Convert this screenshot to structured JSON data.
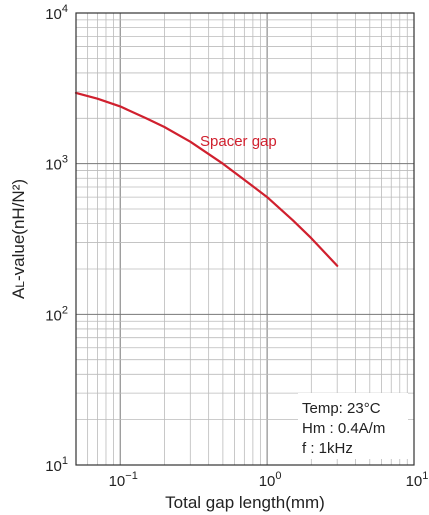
{
  "chart_data": {
    "type": "line",
    "x_scale": "log",
    "y_scale": "log",
    "xlim": [
      0.05,
      10
    ],
    "ylim": [
      10,
      10000
    ],
    "grid": true,
    "xlabel": "Total gap length(mm)",
    "ylabel": {
      "main": "A",
      "sub": "L",
      "rest": "-value(nH/N²)"
    },
    "x_ticks": [
      {
        "value": 0.1,
        "base": "10",
        "exp": "−1"
      },
      {
        "value": 1,
        "base": "10",
        "exp": "0"
      },
      {
        "value": 10,
        "base": "10",
        "exp": "1"
      }
    ],
    "y_ticks": [
      {
        "value": 10,
        "base": "10",
        "exp": "1"
      },
      {
        "value": 100,
        "base": "10",
        "exp": "2"
      },
      {
        "value": 1000,
        "base": "10",
        "exp": "3"
      },
      {
        "value": 10000,
        "base": "10",
        "exp": "4"
      }
    ],
    "series": [
      {
        "name": "Spacer gap",
        "color": "#d0202e",
        "x": [
          0.05,
          0.07,
          0.1,
          0.15,
          0.2,
          0.3,
          0.5,
          0.7,
          1.0,
          1.5,
          2.0,
          3.0
        ],
        "y": [
          2950,
          2700,
          2400,
          2000,
          1750,
          1400,
          1000,
          780,
          600,
          420,
          320,
          210
        ]
      }
    ],
    "annotations": {
      "temp": "Temp: 23°C",
      "hm": "Hm : 0.4A/m",
      "f": "f : 1kHz"
    }
  }
}
